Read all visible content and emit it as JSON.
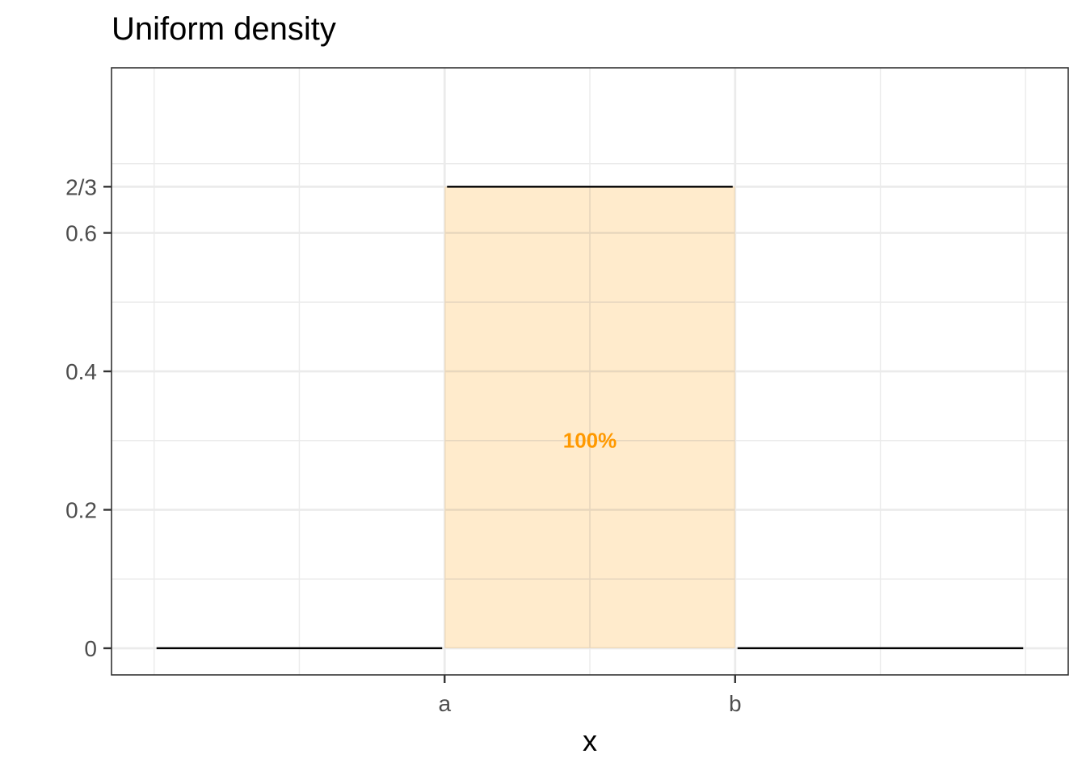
{
  "chart_data": {
    "type": "area",
    "title": "Uniform density",
    "xlabel": "x",
    "ylabel": "",
    "x_ticks": [
      {
        "label": "a",
        "value": 0
      },
      {
        "label": "b",
        "value": 1.5
      }
    ],
    "y_ticks": [
      {
        "label": "0",
        "value": 0
      },
      {
        "label": "0.2",
        "value": 0.2
      },
      {
        "label": "0.4",
        "value": 0.4
      },
      {
        "label": "0.6",
        "value": 0.6
      },
      {
        "label": "2/3",
        "value": 0.6667
      }
    ],
    "xlim": [
      -1.72,
      3.22
    ],
    "ylim": [
      -0.0385,
      0.8385
    ],
    "x_minor_grid": [
      -1.5,
      -0.75,
      0.75,
      2.25,
      3.0
    ],
    "y_minor_grid": [
      0.1,
      0.3,
      0.5,
      0.7
    ],
    "density_segments": [
      {
        "x": [
          -1.5,
          0
        ],
        "y": [
          0,
          0
        ]
      },
      {
        "x": [
          0,
          1.5
        ],
        "y": [
          0.6667,
          0.6667
        ]
      },
      {
        "x": [
          1.5,
          3.0
        ],
        "y": [
          0,
          0
        ]
      }
    ],
    "shaded_region": {
      "x": [
        0,
        1.5
      ],
      "y": 0.6667,
      "label": "100%",
      "color": "#ff9900"
    },
    "line_color": "#000000",
    "grid": true
  }
}
